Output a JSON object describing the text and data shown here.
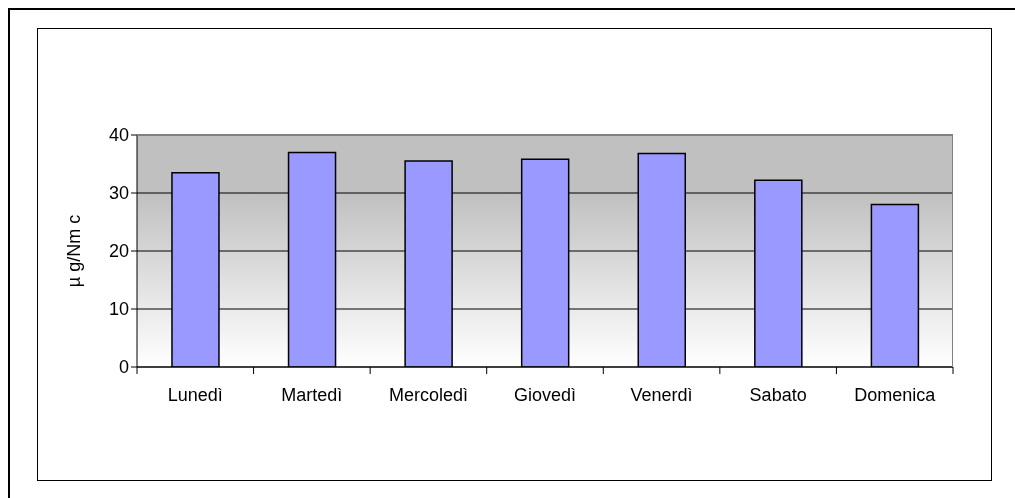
{
  "chart_data": {
    "type": "bar",
    "ylabel": "µ g/Nm c",
    "categories": [
      "Lunedì",
      "Martedì",
      "Mercoledì",
      "Giovedì",
      "Venerdì",
      "Sabato",
      "Domenica"
    ],
    "values": [
      33.5,
      37.0,
      35.5,
      35.8,
      36.8,
      32.2,
      28.0
    ],
    "color": "#9999ff",
    "ylim": [
      0,
      40
    ],
    "yticks": [
      0,
      10,
      20,
      30,
      40
    ],
    "grid": "y"
  }
}
